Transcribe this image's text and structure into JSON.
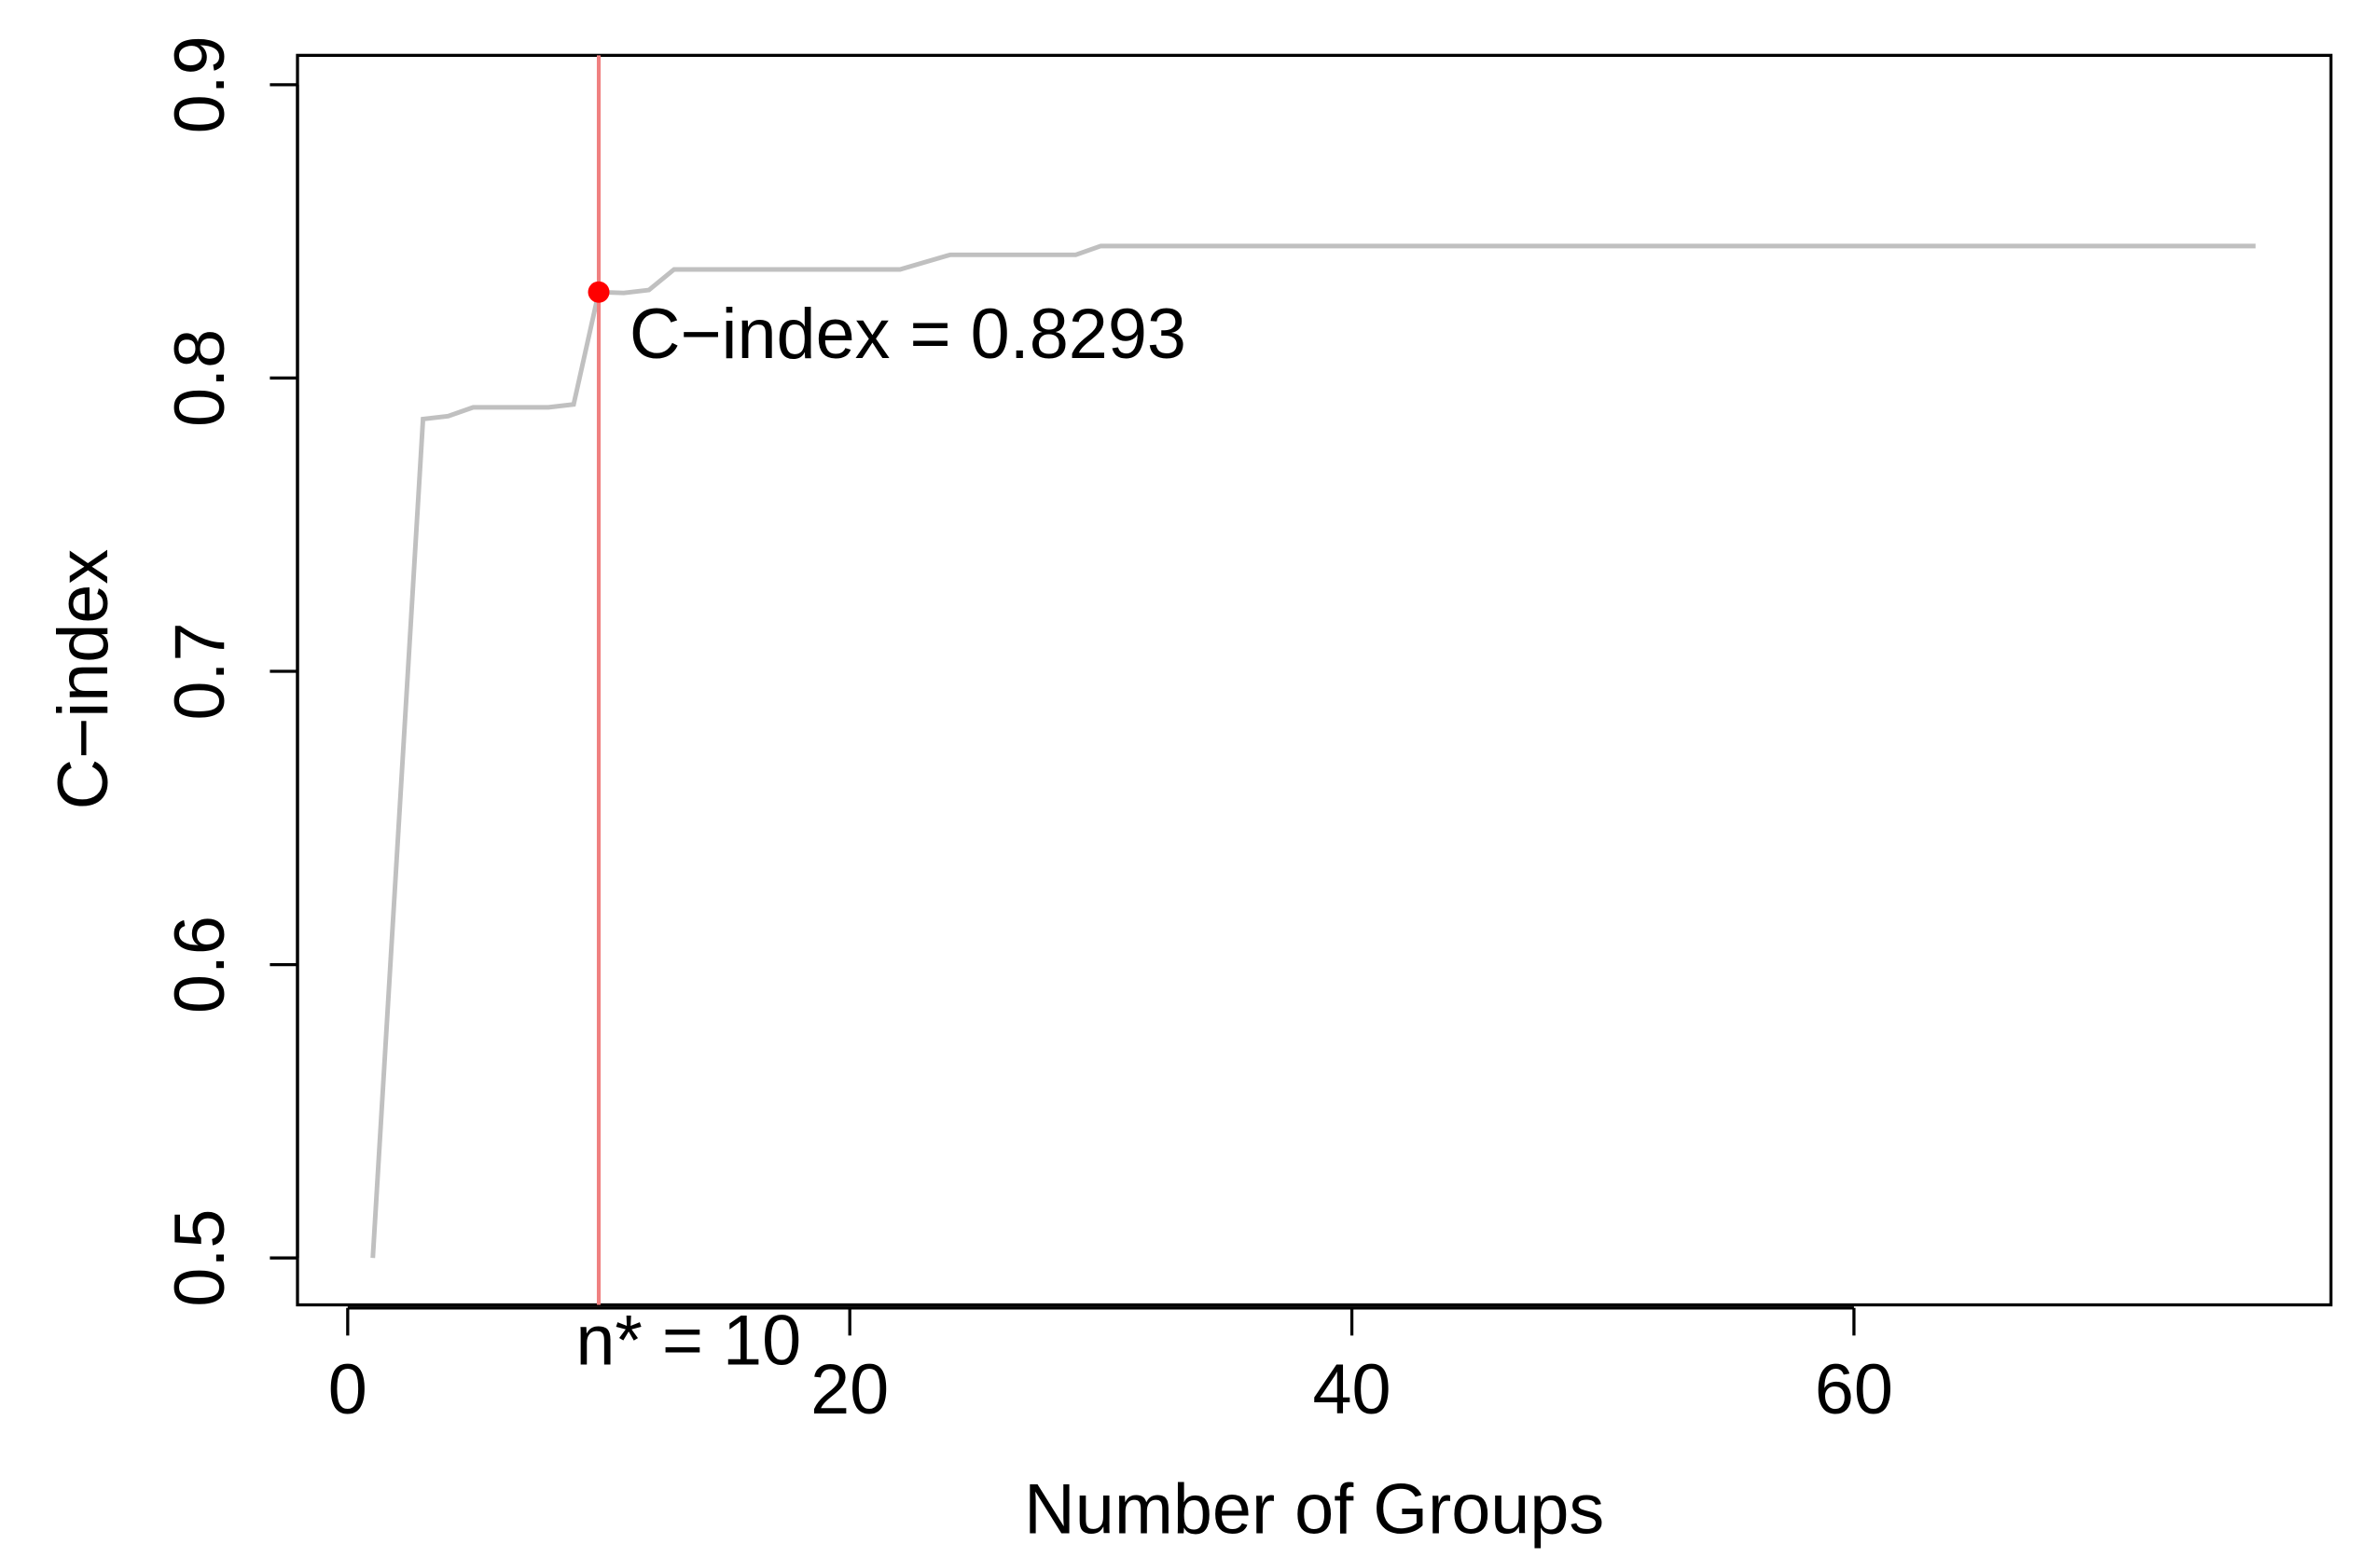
{
  "chart_data": {
    "type": "line",
    "x_label": "Number of Groups",
    "y_label": "C−index",
    "x": [
      1,
      3,
      4,
      5,
      8,
      9,
      10,
      11,
      12,
      13,
      22,
      24,
      29,
      30,
      76
    ],
    "values": [
      0.5,
      0.786,
      0.787,
      0.79,
      0.79,
      0.791,
      0.8293,
      0.829,
      0.83,
      0.837,
      0.837,
      0.842,
      0.842,
      0.845,
      0.845
    ],
    "color": "#c0c0c0",
    "xlim": [
      -2,
      79
    ],
    "ylim": [
      0.484,
      0.91
    ],
    "xticks": [
      0,
      20,
      40,
      60
    ],
    "yticks": [
      0.5,
      0.6,
      0.7,
      0.8,
      0.9
    ],
    "highlight": {
      "x": 10,
      "y": 0.8293,
      "color": "#ff0000",
      "line_color": "#f08080"
    },
    "annotations": [
      "C−index = 0.8293",
      "n* = 10"
    ]
  }
}
